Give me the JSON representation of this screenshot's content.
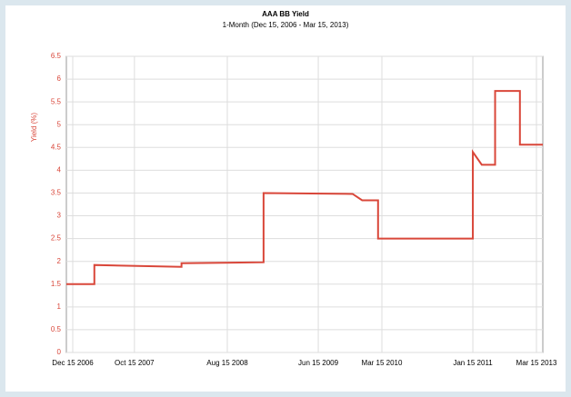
{
  "chart_data": {
    "type": "line",
    "title": "AAA BB Yield",
    "subtitle": "1-Month (Dec 15, 2006 - Mar 15, 2013)",
    "y_label": "Yield (%)",
    "x": [
      0,
      4.4,
      4.4,
      18.1,
      18.1,
      31,
      31,
      45,
      46.5,
      49,
      49,
      63.9,
      63.9,
      65.3,
      67.4,
      67.4,
      71.3,
      71.3,
      74.9
    ],
    "series": [
      {
        "name": "Yield",
        "color": "#d9473a",
        "values": [
          1.5,
          1.5,
          1.92,
          1.88,
          1.96,
          1.98,
          3.5,
          3.48,
          3.34,
          3.34,
          2.5,
          2.5,
          4.4,
          4.12,
          4.12,
          5.74,
          5.74,
          4.56,
          4.56
        ]
      }
    ],
    "xlim": [
      0,
      74.9
    ],
    "ylim": [
      0,
      6.5
    ],
    "xticks": [
      {
        "value": 1,
        "label": "Dec 15 2006"
      },
      {
        "value": 10.7,
        "label": "Oct 15 2007"
      },
      {
        "value": 25.3,
        "label": "Aug 15 2008"
      },
      {
        "value": 39.6,
        "label": "Jun 15 2009"
      },
      {
        "value": 49.6,
        "label": "Mar 15 2010"
      },
      {
        "value": 63.9,
        "label": "Jan 15 2011"
      },
      {
        "value": 73.9,
        "label": "Mar 15 2013"
      }
    ],
    "yticks": [
      0,
      0.5,
      1,
      1.5,
      2,
      2.5,
      3,
      3.5,
      4,
      4.5,
      5,
      5.5,
      6,
      6.5
    ],
    "grid": true
  }
}
